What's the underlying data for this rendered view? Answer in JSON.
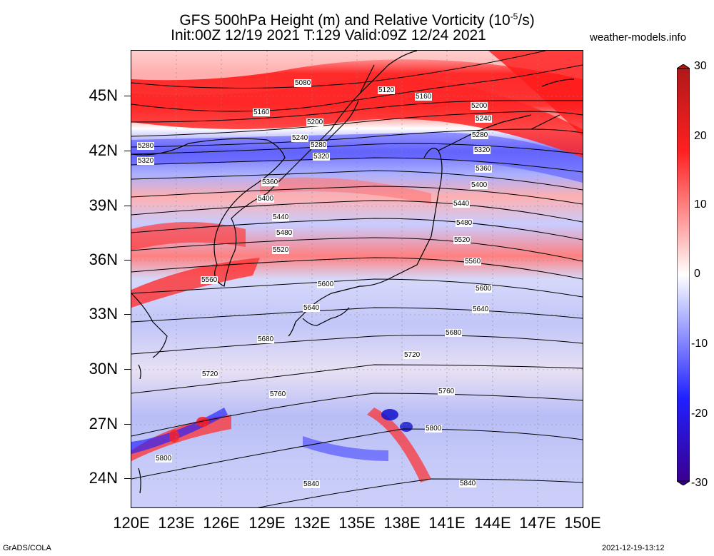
{
  "header": {
    "title_line1": "GFS 500hPa Height (m) and Relative Vorticity (10",
    "title_sup": "-5",
    "title_line1_end": "/s)",
    "title_line2": "Init:00Z 12/19 2021 T:129 Valid:09Z 12/24 2021",
    "brand": "weather-models.info"
  },
  "axes": {
    "lat_labels": [
      "45N",
      "42N",
      "39N",
      "36N",
      "33N",
      "30N",
      "27N",
      "24N"
    ],
    "lon_labels": [
      "120E",
      "123E",
      "126E",
      "129E",
      "132E",
      "135E",
      "138E",
      "141E",
      "144E",
      "147E",
      "150E"
    ]
  },
  "colorbar": {
    "labels": [
      "30",
      "20",
      "10",
      "0",
      "-10",
      "-20",
      "-30"
    ],
    "colors": {
      "max": "#b01818",
      "pos": "#ff2020",
      "zero": "#ffffff",
      "neg": "#2020ff",
      "min": "#3a0090"
    }
  },
  "contours": [
    {
      "label": "5080"
    },
    {
      "label": "5120"
    },
    {
      "label": "5160"
    },
    {
      "label": "5160"
    },
    {
      "label": "5200"
    },
    {
      "label": "5200"
    },
    {
      "label": "5240"
    },
    {
      "label": "5240"
    },
    {
      "label": "5280"
    },
    {
      "label": "5280"
    },
    {
      "label": "5280"
    },
    {
      "label": "5320"
    },
    {
      "label": "5320"
    },
    {
      "label": "5320"
    },
    {
      "label": "5360"
    },
    {
      "label": "5360"
    },
    {
      "label": "5400"
    },
    {
      "label": "5400"
    },
    {
      "label": "5440"
    },
    {
      "label": "5440"
    },
    {
      "label": "5480"
    },
    {
      "label": "5480"
    },
    {
      "label": "5520"
    },
    {
      "label": "5520"
    },
    {
      "label": "5560"
    },
    {
      "label": "5560"
    },
    {
      "label": "5600"
    },
    {
      "label": "5600"
    },
    {
      "label": "5640"
    },
    {
      "label": "5640"
    },
    {
      "label": "5680"
    },
    {
      "label": "5680"
    },
    {
      "label": "5720"
    },
    {
      "label": "5720"
    },
    {
      "label": "5760"
    },
    {
      "label": "5760"
    },
    {
      "label": "5800"
    },
    {
      "label": "5800"
    },
    {
      "label": "5840"
    },
    {
      "label": "5840"
    }
  ],
  "footer": {
    "left": "GrADS/COLA",
    "right": "2021-12-19-13:12"
  }
}
